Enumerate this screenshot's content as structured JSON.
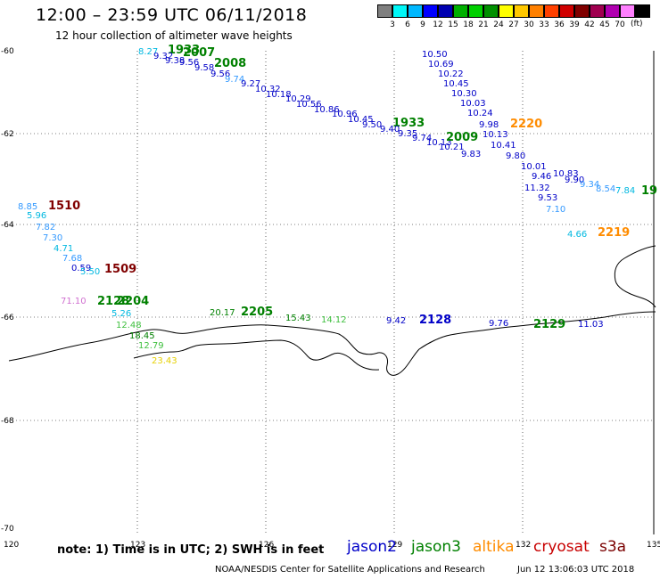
{
  "title": "12:00 – 23:59 UTC 06/11/2018",
  "subtitle": "12 hour collection of altimeter wave heights",
  "colorbar": {
    "swatches": [
      "#7f7f7f",
      "#00f7f7",
      "#00b8ff",
      "#0000ff",
      "#0000b0",
      "#00b000",
      "#00d000",
      "#009000",
      "#ffff00",
      "#ffc800",
      "#ff8000",
      "#ff4000",
      "#d00000",
      "#800000",
      "#a00050",
      "#b000b0",
      "#ff80ff",
      "#000000"
    ],
    "labels": [
      "3",
      "6",
      "9",
      "12",
      "15",
      "18",
      "21",
      "24",
      "27",
      "30",
      "33",
      "36",
      "39",
      "42",
      "45",
      "70"
    ],
    "unit": "(ft)"
  },
  "axes": {
    "x_ticks": [
      "120",
      "123",
      "126",
      "129",
      "132",
      "135"
    ],
    "y_ticks": [
      "-60",
      "-62",
      "-64",
      "-66",
      "-68",
      "-70"
    ]
  },
  "colors": {
    "jason2": "#0000c8",
    "jason3": "#008000",
    "altika": "#ff8c00",
    "cryosat": "#c80000",
    "s3a": "#7a0000",
    "cyan": "#00b8e0",
    "light_blue": "#3399ff",
    "violet": "#d070d0",
    "yellow": "#e6d000",
    "light_green": "#40c040",
    "dark_red": "#800000"
  },
  "map_labels": [
    {
      "t": "8.27",
      "c": "cyan"
    },
    {
      "t": "1933",
      "c": "jason3",
      "b": true
    },
    {
      "t": "9.32",
      "c": "jason2"
    },
    {
      "t": "2007",
      "c": "jason3",
      "b": true
    },
    {
      "t": "9.38",
      "c": "jason2"
    },
    {
      "t": "9.56",
      "c": "jason2"
    },
    {
      "t": "9.58",
      "c": "jason2"
    },
    {
      "t": "2008",
      "c": "jason3",
      "b": true
    },
    {
      "t": "9.56",
      "c": "jason2"
    },
    {
      "t": "9.74",
      "c": "light_blue"
    },
    {
      "t": "9.27",
      "c": "jason2"
    },
    {
      "t": "10.32",
      "c": "jason2"
    },
    {
      "t": "10.18",
      "c": "jason2"
    },
    {
      "t": "10.29",
      "c": "jason2"
    },
    {
      "t": "10.56",
      "c": "jason2"
    },
    {
      "t": "10.86",
      "c": "jason2"
    },
    {
      "t": "10.96",
      "c": "jason2"
    },
    {
      "t": "10.45",
      "c": "jason2"
    },
    {
      "t": "9.50",
      "c": "jason2"
    },
    {
      "t": "1933",
      "c": "jason3",
      "b": true
    },
    {
      "t": "9.40",
      "c": "jason2"
    },
    {
      "t": "9.35",
      "c": "jason2"
    },
    {
      "t": "9.74",
      "c": "jason2"
    },
    {
      "t": "10.13",
      "c": "jason2"
    },
    {
      "t": "2009",
      "c": "jason3",
      "b": true
    },
    {
      "t": "10.21",
      "c": "jason2"
    },
    {
      "t": "10.50",
      "c": "jason2"
    },
    {
      "t": "10.69",
      "c": "jason2"
    },
    {
      "t": "10.22",
      "c": "jason2"
    },
    {
      "t": "10.45",
      "c": "jason2"
    },
    {
      "t": "10.30",
      "c": "jason2"
    },
    {
      "t": "10.03",
      "c": "jason2"
    },
    {
      "t": "10.24",
      "c": "jason2"
    },
    {
      "t": "9.98",
      "c": "jason2"
    },
    {
      "t": "2220",
      "c": "altika",
      "b": true
    },
    {
      "t": "10.13",
      "c": "jason2"
    },
    {
      "t": "10.41",
      "c": "jason2"
    },
    {
      "t": "9.80",
      "c": "jason2"
    },
    {
      "t": "9.83",
      "c": "jason2"
    },
    {
      "t": "10.01",
      "c": "jason2"
    },
    {
      "t": "10.83",
      "c": "jason2"
    },
    {
      "t": "9.46",
      "c": "jason2"
    },
    {
      "t": "9.90",
      "c": "jason2"
    },
    {
      "t": "9.34",
      "c": "light_blue"
    },
    {
      "t": "8.54",
      "c": "light_blue"
    },
    {
      "t": "7.84",
      "c": "cyan"
    },
    {
      "t": "11.32",
      "c": "jason2"
    },
    {
      "t": "19",
      "c": "jason3",
      "b": true
    },
    {
      "t": "9.53",
      "c": "jason2"
    },
    {
      "t": "7.10",
      "c": "light_blue"
    },
    {
      "t": "4.66",
      "c": "cyan"
    },
    {
      "t": "2219",
      "c": "altika",
      "b": true
    },
    {
      "t": "8.85",
      "c": "light_blue"
    },
    {
      "t": "1510",
      "c": "dark_red",
      "b": true
    },
    {
      "t": "5.96",
      "c": "cyan"
    },
    {
      "t": "7.82",
      "c": "light_blue"
    },
    {
      "t": "7.30",
      "c": "light_blue"
    },
    {
      "t": "4.71",
      "c": "cyan"
    },
    {
      "t": "7.68",
      "c": "light_blue"
    },
    {
      "t": "0.59",
      "c": "jason2"
    },
    {
      "t": "5.50",
      "c": "cyan"
    },
    {
      "t": "1509",
      "c": "dark_red",
      "b": true
    },
    {
      "t": "71.10",
      "c": "violet"
    },
    {
      "t": "2128",
      "c": "jason3",
      "b": true
    },
    {
      "t": "2204",
      "c": "jason3",
      "b": true
    },
    {
      "t": "5.26",
      "c": "cyan"
    },
    {
      "t": "12.48",
      "c": "light_green"
    },
    {
      "t": "18.45",
      "c": "jason3"
    },
    {
      "t": "12.79",
      "c": "light_green"
    },
    {
      "t": "23.43",
      "c": "yellow"
    },
    {
      "t": "20.17",
      "c": "jason3"
    },
    {
      "t": "2205",
      "c": "jason3",
      "b": true
    },
    {
      "t": "15.43",
      "c": "jason3"
    },
    {
      "t": "14.12",
      "c": "light_green"
    },
    {
      "t": "9.42",
      "c": "jason2"
    },
    {
      "t": "2128",
      "c": "jason2",
      "b": true
    },
    {
      "t": "9.76",
      "c": "jason2"
    },
    {
      "t": "2129",
      "c": "jason3",
      "b": true
    },
    {
      "t": "11.03",
      "c": "jason2"
    }
  ],
  "note": "note:  1) Time is in UTC;  2) SWH is in feet",
  "legend": [
    {
      "name": "jason2",
      "color": "#0000c8"
    },
    {
      "name": "jason3",
      "color": "#008000"
    },
    {
      "name": "altika",
      "color": "#ff8c00"
    },
    {
      "name": "cryosat",
      "color": "#c80000"
    },
    {
      "name": "s3a",
      "color": "#7a0000"
    }
  ],
  "credit": "NOAA/NESDIS Center for Satellite Applications and Research",
  "stamp": "Jun 12 13:06:03 UTC 2018"
}
